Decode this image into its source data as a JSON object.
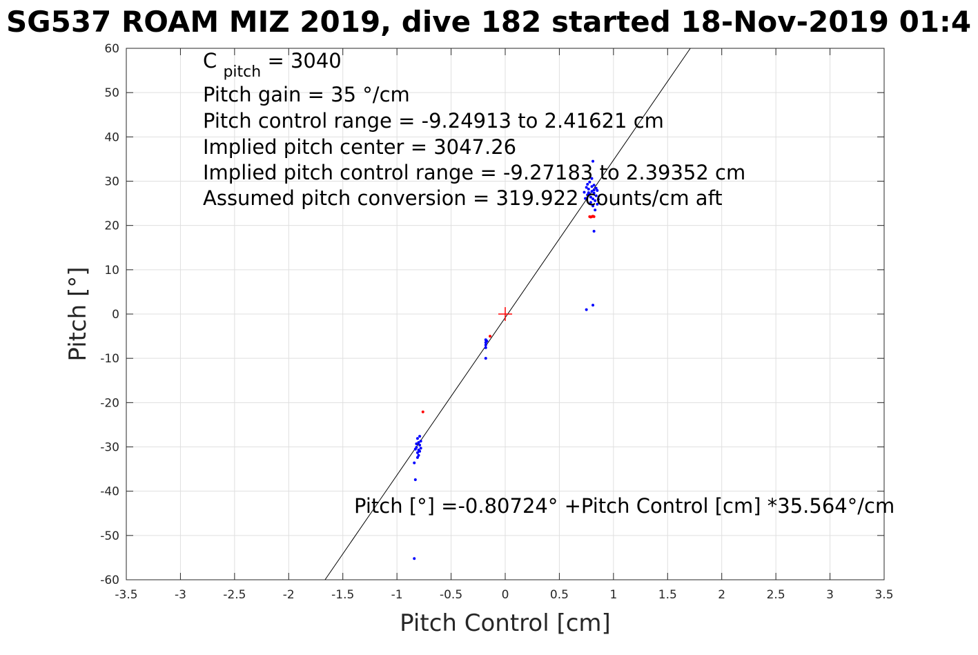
{
  "chart_data": {
    "type": "scatter",
    "title": "SG537 ROAM MIZ 2019, dive 182 started 18-Nov-2019 01:4",
    "xlabel": "Pitch Control [cm]",
    "ylabel": "Pitch [°]",
    "xlim": [
      -3.5,
      3.5
    ],
    "ylim": [
      -60,
      60
    ],
    "xticks": [
      -3.5,
      -3,
      -2.5,
      -2,
      -1.5,
      -1,
      -0.5,
      0,
      0.5,
      1,
      1.5,
      2,
      2.5,
      3,
      3.5
    ],
    "xtick_labels": [
      "-3.5",
      "-3",
      "-2.5",
      "-2",
      "-1.5",
      "-1",
      "-0.5",
      "0",
      "0.5",
      "1",
      "1.5",
      "2",
      "2.5",
      "3",
      "3.5"
    ],
    "yticks": [
      -60,
      -50,
      -40,
      -30,
      -20,
      -10,
      0,
      10,
      20,
      30,
      40,
      50,
      60
    ],
    "ytick_labels": [
      "-60",
      "-50",
      "-40",
      "-30",
      "-20",
      "-10",
      "0",
      "10",
      "20",
      "30",
      "40",
      "50",
      "60"
    ],
    "grid": true,
    "annotations": {
      "cpitch": "C",
      "cpitch_sub": "pitch",
      "cpitch_value": " = 3040",
      "lines": [
        "Pitch gain = 35 °/cm",
        "Pitch control range = -9.24913 to 2.41621 cm",
        "Implied pitch center = 3047.26",
        "Implied pitch control range = -9.27183 to 2.39352 cm",
        "Assumed pitch conversion = 319.922 counts/cm aft"
      ],
      "fit_label": "Pitch [°] =-0.80724° +Pitch Control [cm] *35.564°/cm"
    },
    "fit_line": {
      "intercept": -0.80724,
      "slope": 35.564,
      "color": "#000000"
    },
    "center_marker": {
      "x": 0,
      "y": 0,
      "color": "#ff0000"
    },
    "series": [
      {
        "color": "#0000ff",
        "points": [
          [
            0.73,
            27.5
          ],
          [
            0.75,
            28.6
          ],
          [
            0.76,
            26.9
          ],
          [
            0.77,
            28.2
          ],
          [
            0.78,
            27.1
          ],
          [
            0.79,
            26.4
          ],
          [
            0.8,
            28.8
          ],
          [
            0.8,
            27.7
          ],
          [
            0.81,
            26.0
          ],
          [
            0.82,
            29.1
          ],
          [
            0.82,
            27.3
          ],
          [
            0.83,
            25.6
          ],
          [
            0.84,
            28.4
          ],
          [
            0.84,
            26.7
          ],
          [
            0.85,
            27.9
          ],
          [
            0.86,
            25.9
          ],
          [
            0.74,
            26.1
          ],
          [
            0.76,
            29.3
          ],
          [
            0.79,
            25.2
          ],
          [
            0.81,
            24.4
          ],
          [
            0.83,
            23.5
          ],
          [
            0.85,
            24.8
          ],
          [
            0.78,
            29.8
          ],
          [
            0.8,
            30.6
          ],
          [
            0.82,
            28.0
          ],
          [
            0.77,
            27.4
          ],
          [
            0.81,
            34.5
          ],
          [
            0.82,
            18.7
          ],
          [
            0.75,
            1.0
          ],
          [
            0.81,
            2.0
          ],
          [
            -0.18,
            -5.8
          ],
          [
            -0.18,
            -6.4
          ],
          [
            -0.18,
            -7.0
          ],
          [
            -0.18,
            -7.6
          ],
          [
            -0.17,
            -6.1
          ],
          [
            -0.18,
            -10.0
          ],
          [
            -0.81,
            -28.1
          ],
          [
            -0.8,
            -29.0
          ],
          [
            -0.79,
            -29.6
          ],
          [
            -0.82,
            -30.1
          ],
          [
            -0.8,
            -30.7
          ],
          [
            -0.81,
            -31.3
          ],
          [
            -0.78,
            -28.7
          ],
          [
            -0.79,
            -27.6
          ],
          [
            -0.82,
            -29.3
          ],
          [
            -0.8,
            -31.9
          ],
          [
            -0.83,
            -30.5
          ],
          [
            -0.78,
            -30.3
          ],
          [
            -0.81,
            -32.4
          ],
          [
            -0.79,
            -31.0
          ],
          [
            -0.84,
            -33.6
          ],
          [
            -0.83,
            -37.4
          ],
          [
            -0.84,
            -55.2
          ]
        ]
      },
      {
        "color": "#ff0000",
        "points": [
          [
            0.78,
            22.0
          ],
          [
            0.8,
            22.0
          ],
          [
            0.82,
            22.0
          ],
          [
            0.79,
            21.9
          ],
          [
            0.81,
            22.1
          ],
          [
            -0.14,
            -5.0
          ],
          [
            -0.76,
            -22.1
          ]
        ]
      }
    ]
  }
}
